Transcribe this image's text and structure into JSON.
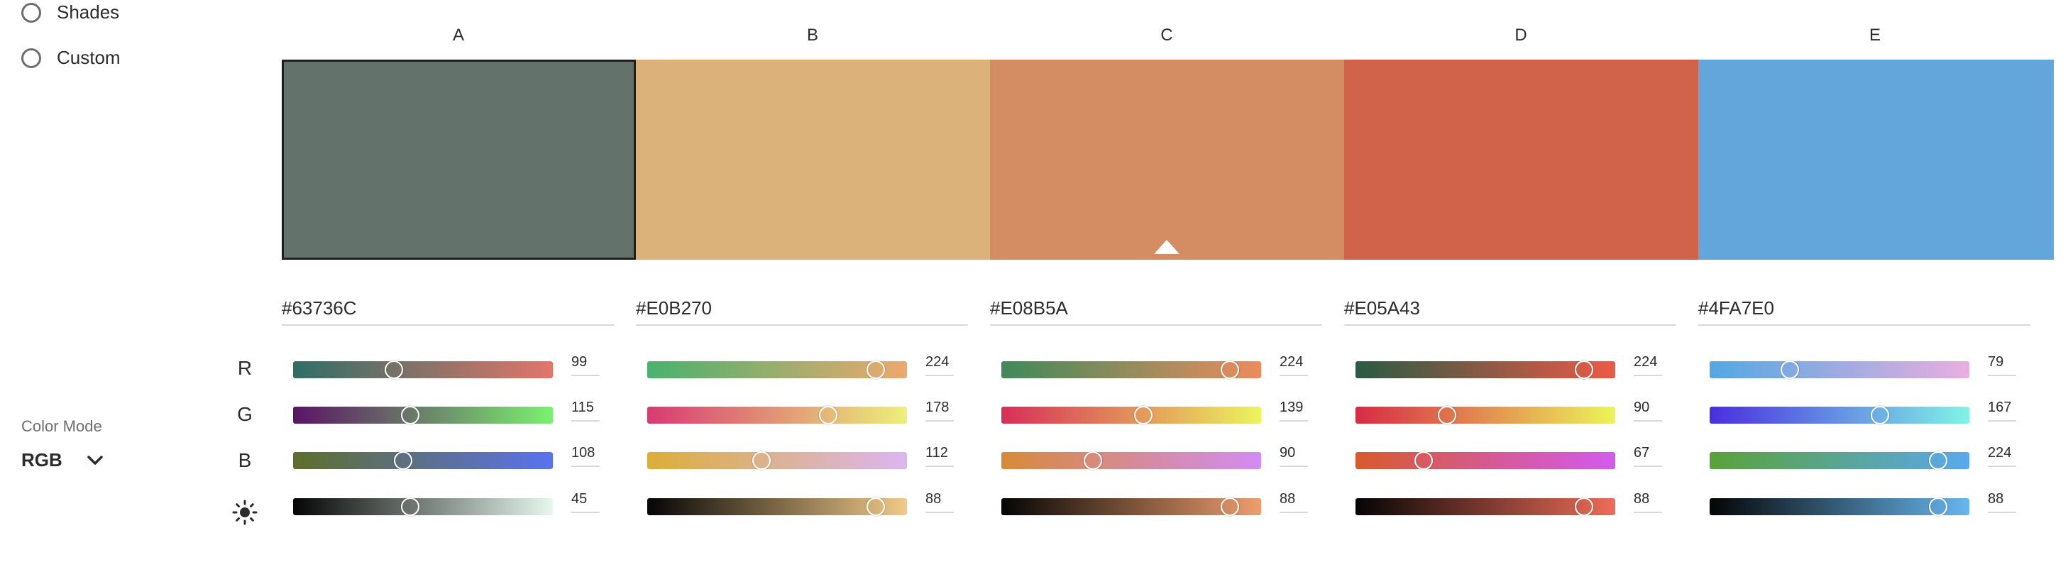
{
  "options": [
    {
      "label": "Shades",
      "checked": false
    },
    {
      "label": "Custom",
      "checked": false
    }
  ],
  "color_mode": {
    "title": "Color Mode",
    "value": "RGB"
  },
  "row_labels": [
    "R",
    "G",
    "B"
  ],
  "brightness_icon": "sun-icon",
  "selected_column": "A",
  "marker_column": "C",
  "columns": [
    {
      "label": "A",
      "hex": "#63736C",
      "color": "#63736C",
      "r": 99,
      "g": 115,
      "b": 108,
      "brightness": 45,
      "grad_r": [
        "#2f6e66",
        "#e3756a"
      ],
      "grad_g": [
        "#5a1464",
        "#7cf070"
      ],
      "grad_b": [
        "#5e6e2a",
        "#5a72f0"
      ],
      "grad_l": [
        "#050505",
        "#e6f8ee"
      ]
    },
    {
      "label": "B",
      "hex": "#E0B270",
      "color": "#DAB27A",
      "r": 224,
      "g": 178,
      "b": 112,
      "brightness": 88,
      "grad_r": [
        "#48b26e",
        "#eda86e"
      ],
      "grad_g": [
        "#d83a72",
        "#ecf07a"
      ],
      "grad_b": [
        "#dcae38",
        "#dcb6f2"
      ],
      "grad_l": [
        "#050505",
        "#f2ca88"
      ]
    },
    {
      "label": "C",
      "hex": "#E08B5A",
      "color": "#D48C62",
      "r": 224,
      "g": 139,
      "b": 90,
      "brightness": 88,
      "grad_r": [
        "#3f8a5a",
        "#ec8c5e"
      ],
      "grad_g": [
        "#d82e58",
        "#ecf45e"
      ],
      "grad_b": [
        "#d88a38",
        "#d28cf4"
      ],
      "grad_l": [
        "#050505",
        "#ef9e6e"
      ]
    },
    {
      "label": "D",
      "hex": "#E05A43",
      "color": "#D0634A",
      "r": 224,
      "g": 90,
      "b": 67,
      "brightness": 88,
      "grad_r": [
        "#2a5a44",
        "#ec5a46"
      ],
      "grad_g": [
        "#d82a46",
        "#ecf45a"
      ],
      "grad_b": [
        "#d85a2c",
        "#d45af0"
      ],
      "grad_l": [
        "#050505",
        "#ef6c58"
      ]
    },
    {
      "label": "E",
      "hex": "#4FA7E0",
      "color": "#62A6DC",
      "r": 79,
      "g": 167,
      "b": 224,
      "brightness": 88,
      "grad_r": [
        "#52a8e2",
        "#eaaee0"
      ],
      "grad_g": [
        "#4a2ee0",
        "#80f4e6"
      ],
      "grad_b": [
        "#5aa238",
        "#5aa8ee"
      ],
      "grad_l": [
        "#050505",
        "#68b6f0"
      ]
    }
  ]
}
